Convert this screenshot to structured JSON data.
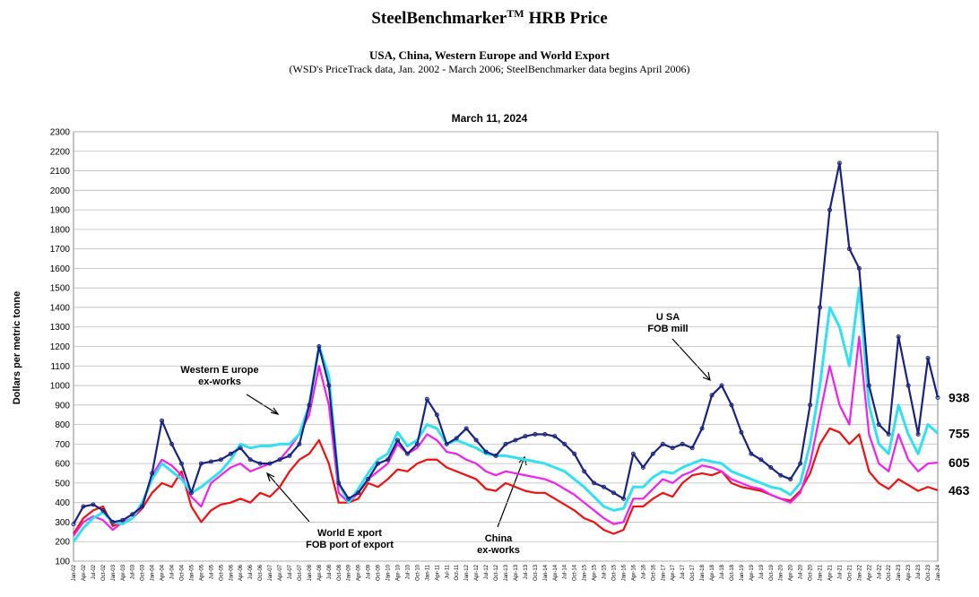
{
  "chart_data": {
    "type": "line",
    "title": "SteelBenchmarker",
    "title_superscript": "TM",
    "title_suffix": "HRB Price",
    "subtitle": "USA, China, Western Europe and World Export",
    "note": "(WSD's PriceTrack data, Jan. 2002 - March 2006; SteelBenchmarker data begins April 2006)",
    "date": "March 11, 2024",
    "y_label": "Dollars per metric tonne",
    "categories": [
      "Jan-02",
      "Apr-02",
      "Jul-02",
      "Oct-02",
      "Jan-03",
      "Apr-03",
      "Jul-03",
      "Oct-03",
      "Jan-04",
      "Apr-04",
      "Jul-04",
      "Oct-04",
      "Jan-05",
      "Apr-05",
      "Jul-05",
      "Oct-05",
      "Jan-06",
      "Apr-06",
      "Jul-06",
      "Oct-06",
      "Jan-07",
      "Apr-07",
      "Jul-07",
      "Oct-07",
      "Jan-08",
      "Apr-08",
      "Jul-08",
      "Oct-08",
      "Jan-09",
      "Apr-09",
      "Jul-09",
      "Oct-09",
      "Jan-10",
      "Apr-10",
      "Jul-10",
      "Oct-10",
      "Jan-11",
      "Apr-11",
      "Jul-11",
      "Oct-11",
      "Jan-12",
      "Apr-12",
      "Jul-12",
      "Oct-12",
      "Jan-13",
      "Apr-13",
      "Jul-13",
      "Oct-13",
      "Jan-14",
      "Apr-14",
      "Jul-14",
      "Oct-14",
      "Jan-15",
      "Apr-15",
      "Jul-15",
      "Oct-15",
      "Jan-16",
      "Apr-16",
      "Jul-16",
      "Oct-16",
      "Jan-17",
      "Apr-17",
      "Jul-17",
      "Oct-17",
      "Jan-18",
      "Apr-18",
      "Jul-18",
      "Oct-18",
      "Jan-19",
      "Apr-19",
      "Jul-19",
      "Oct-19",
      "Jan-20",
      "Apr-20",
      "Jul-20",
      "Oct-20",
      "Jan-21",
      "Apr-21",
      "Jul-21",
      "Oct-21",
      "Jan-22",
      "Apr-22",
      "Jul-22",
      "Oct-22",
      "Jan-23",
      "Apr-23",
      "Jul-23",
      "Oct-23",
      "Jan-24"
    ],
    "series": [
      {
        "name": "U SA\nFOB mill",
        "color": "#1a237e",
        "values": [
          290,
          380,
          390,
          360,
          300,
          310,
          340,
          380,
          550,
          820,
          700,
          600,
          450,
          600,
          610,
          620,
          650,
          680,
          620,
          600,
          600,
          620,
          640,
          700,
          900,
          1200,
          1000,
          500,
          420,
          450,
          520,
          600,
          620,
          720,
          650,
          700,
          930,
          850,
          700,
          730,
          780,
          720,
          660,
          640,
          700,
          720,
          740,
          750,
          750,
          740,
          700,
          650,
          560,
          500,
          480,
          450,
          420,
          650,
          580,
          650,
          700,
          680,
          700,
          680,
          780,
          950,
          1000,
          900,
          760,
          650,
          620,
          580,
          540,
          520,
          600,
          900,
          1400,
          1900,
          2140,
          1700,
          1600,
          1000,
          800,
          750,
          1250,
          1000,
          750,
          1140,
          938
        ]
      },
      {
        "name": "Western E urope\nex-works",
        "color": "#33e0f0",
        "values": [
          200,
          270,
          320,
          350,
          300,
          290,
          320,
          400,
          520,
          600,
          560,
          520,
          450,
          480,
          520,
          560,
          620,
          700,
          680,
          690,
          690,
          700,
          700,
          750,
          900,
          1200,
          1050,
          500,
          400,
          470,
          550,
          620,
          650,
          760,
          690,
          720,
          800,
          780,
          700,
          720,
          700,
          680,
          650,
          640,
          640,
          630,
          620,
          610,
          600,
          580,
          560,
          520,
          480,
          430,
          380,
          360,
          370,
          480,
          480,
          530,
          560,
          550,
          580,
          600,
          620,
          610,
          600,
          560,
          540,
          520,
          500,
          480,
          470,
          440,
          500,
          700,
          1000,
          1400,
          1300,
          1100,
          1500,
          900,
          700,
          650,
          900,
          750,
          650,
          800,
          755
        ]
      },
      {
        "name": "World E xport\nFOB port of export",
        "color": "#ee22ee",
        "values": [
          230,
          300,
          330,
          310,
          260,
          300,
          320,
          380,
          540,
          620,
          590,
          540,
          430,
          380,
          500,
          540,
          580,
          600,
          560,
          580,
          600,
          620,
          680,
          750,
          850,
          1100,
          900,
          450,
          400,
          450,
          520,
          560,
          600,
          700,
          650,
          680,
          750,
          720,
          660,
          650,
          620,
          600,
          560,
          540,
          560,
          550,
          540,
          530,
          520,
          500,
          470,
          440,
          400,
          360,
          320,
          290,
          300,
          420,
          420,
          470,
          520,
          500,
          540,
          560,
          590,
          580,
          560,
          520,
          500,
          480,
          470,
          440,
          420,
          400,
          450,
          600,
          850,
          1100,
          900,
          800,
          1250,
          750,
          600,
          560,
          750,
          620,
          560,
          600,
          605
        ]
      },
      {
        "name": "China\nex-works",
        "color": "#ee1111",
        "values": [
          240,
          320,
          360,
          380,
          280,
          300,
          320,
          370,
          450,
          500,
          480,
          560,
          380,
          300,
          360,
          390,
          400,
          420,
          400,
          450,
          430,
          480,
          560,
          620,
          650,
          720,
          600,
          400,
          400,
          420,
          500,
          480,
          520,
          570,
          560,
          600,
          620,
          620,
          580,
          560,
          540,
          520,
          470,
          460,
          500,
          480,
          460,
          450,
          450,
          420,
          390,
          360,
          320,
          300,
          260,
          240,
          260,
          380,
          380,
          420,
          450,
          430,
          500,
          540,
          550,
          540,
          560,
          500,
          480,
          470,
          460,
          440,
          420,
          410,
          460,
          550,
          700,
          780,
          760,
          700,
          750,
          560,
          500,
          470,
          520,
          490,
          460,
          480,
          463
        ]
      }
    ],
    "ylim": [
      100,
      2300
    ],
    "yticks": [
      100,
      200,
      300,
      400,
      500,
      600,
      700,
      800,
      900,
      1000,
      1100,
      1200,
      1300,
      1400,
      1500,
      1600,
      1700,
      1800,
      1900,
      2000,
      2100,
      2200,
      2300
    ],
    "grid": true
  }
}
